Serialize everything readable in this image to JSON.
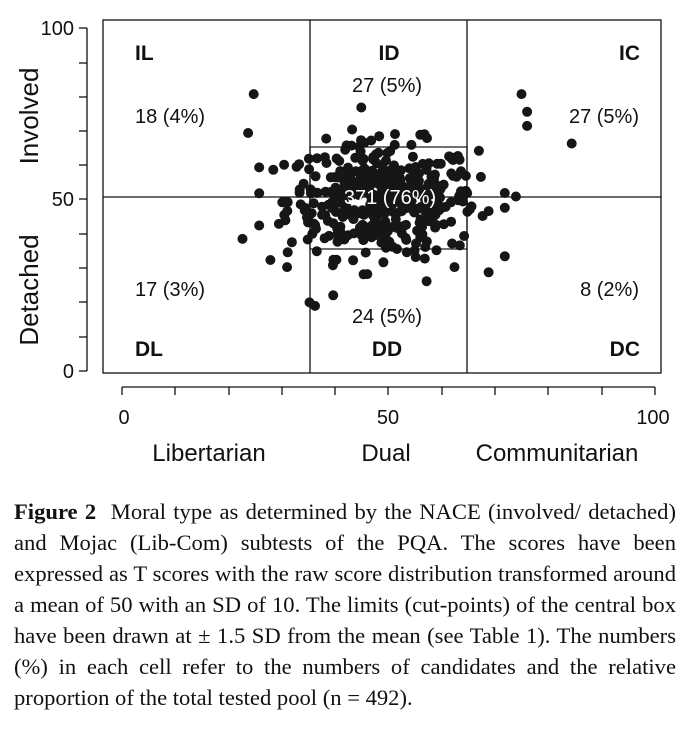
{
  "chart_data": {
    "type": "scatter",
    "title": "",
    "xlim": [
      0,
      100
    ],
    "ylim": [
      0,
      100
    ],
    "x_ticks": [
      "0",
      "50",
      "100"
    ],
    "y_ticks": [
      "0",
      "50",
      "100"
    ],
    "x_categories": [
      "Libertarian",
      "Dual",
      "Communitarian"
    ],
    "y_categories": [
      "Detached",
      "Involved"
    ],
    "cutpoints": [
      35,
      65
    ],
    "midline": 50,
    "cells": [
      {
        "code": "IL",
        "count": "18 (4%)"
      },
      {
        "code": "ID",
        "count": "27 (5%)"
      },
      {
        "code": "IC",
        "count": "27 (5%)"
      },
      {
        "code": "DL",
        "count": "17 (3%)"
      },
      {
        "code": "DD",
        "count": "24 (5%)"
      },
      {
        "code": "DC",
        "count": "8 (2%)"
      },
      {
        "code": "",
        "count": "371 (76%)"
      }
    ],
    "n": 492,
    "highlighted_points": [
      {
        "x": 27,
        "y": 79
      },
      {
        "x": 26,
        "y": 68
      },
      {
        "x": 25,
        "y": 38
      },
      {
        "x": 37,
        "y": 20
      },
      {
        "x": 38,
        "y": 19
      },
      {
        "x": 75,
        "y": 79
      },
      {
        "x": 76,
        "y": 74
      },
      {
        "x": 76,
        "y": 70
      },
      {
        "x": 84,
        "y": 65
      },
      {
        "x": 74,
        "y": 50
      },
      {
        "x": 72,
        "y": 51
      },
      {
        "x": 58,
        "y": 26
      },
      {
        "x": 63,
        "y": 30
      },
      {
        "x": 33,
        "y": 30
      },
      {
        "x": 30,
        "y": 32
      }
    ]
  },
  "caption": {
    "label": "Figure 2",
    "text": "Moral type as determined by the NACE (involved/ detached) and Mojac (Lib-Com) subtests of the PQA. The scores have been expressed as T scores with the raw score distribution transformed around a mean of 50 with an SD of 10. The limits (cut-points) of the central box have been drawn at ± 1.5 SD from the mean (see Table 1). The numbers (%) in each cell refer to the numbers of candidates and the relative proportion of the total tested pool (n = 492)."
  }
}
